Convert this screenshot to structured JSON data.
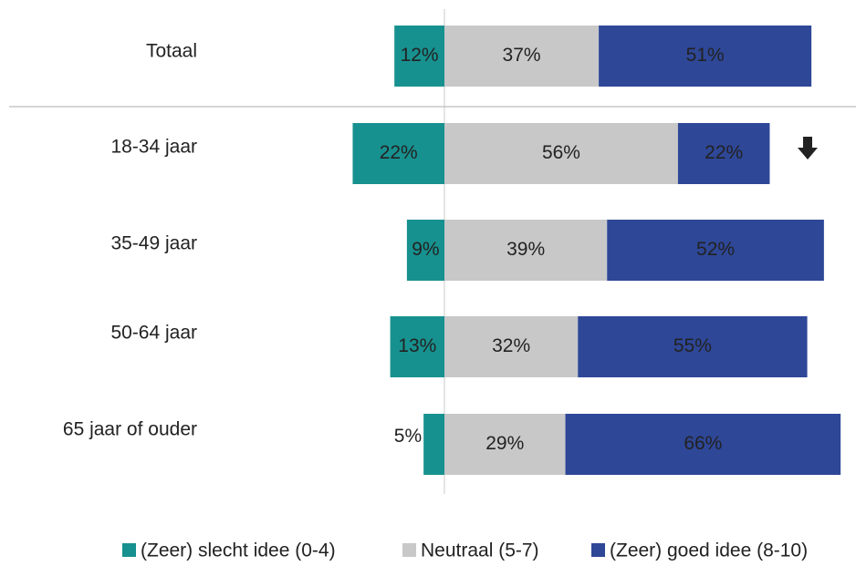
{
  "chart_data": {
    "type": "diverging-bar",
    "categories": [
      "Totaal",
      "18-34 jaar",
      "35-49 jaar",
      "50-64 jaar",
      "65 jaar of ouder"
    ],
    "series": [
      {
        "name": "(Zeer) slecht idee (0-4)",
        "color": "#17918f",
        "values": [
          12,
          22,
          9,
          13,
          5
        ],
        "value_labels": [
          "12%",
          "22%",
          "9%",
          "13%",
          "5%"
        ]
      },
      {
        "name": "Neutraal (5-7)",
        "color": "#c8c8c9",
        "values": [
          37,
          56,
          39,
          32,
          29
        ],
        "value_labels": [
          "37%",
          "56%",
          "39%",
          "32%",
          "29%"
        ]
      },
      {
        "name": "(Zeer) goed idee (8-10)",
        "color": "#2e4797",
        "values": [
          51,
          22,
          52,
          55,
          66
        ],
        "value_labels": [
          "51%",
          "22%",
          "52%",
          "55%",
          "66%"
        ]
      }
    ]
  }
}
